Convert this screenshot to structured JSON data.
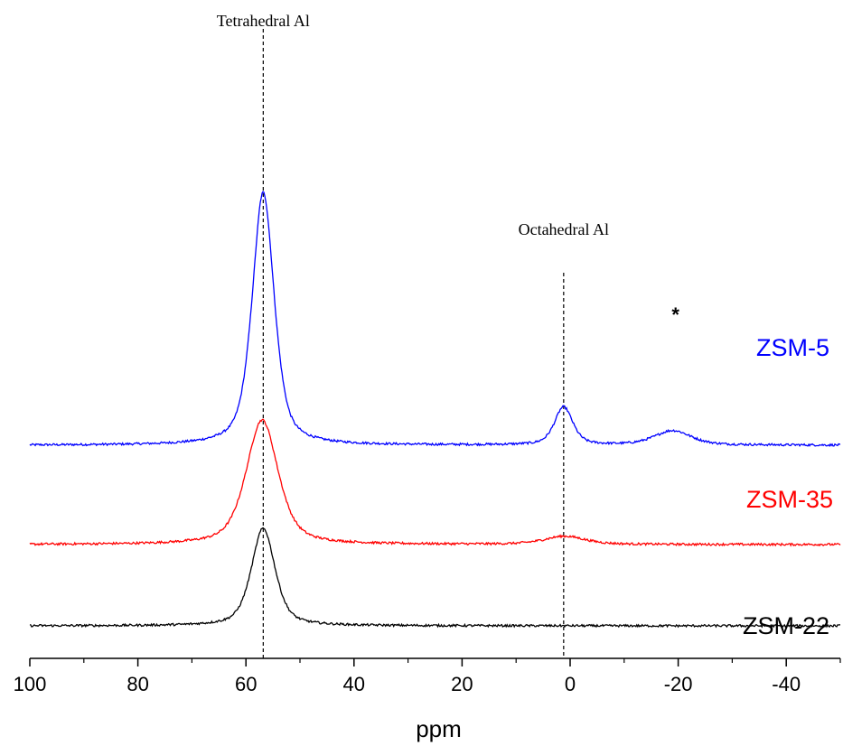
{
  "chart_data": {
    "type": "line",
    "xlabel": "ppm",
    "ylabel": "",
    "xlim": [
      100,
      -50
    ],
    "x_reversed": true,
    "y_axis_visible": false,
    "grid": false,
    "x_ticks": [
      "100",
      "80",
      "60",
      "40",
      "20",
      "0",
      "-20",
      "-40"
    ],
    "x_tick_values": [
      100,
      80,
      60,
      40,
      20,
      0,
      -20,
      -40
    ],
    "reference_lines": [
      {
        "x": 56.8,
        "label": "Tetrahedral Al",
        "style": "dashed"
      },
      {
        "x": 1.2,
        "label": "Octahedral Al",
        "style": "dashed"
      }
    ],
    "annotations": [
      {
        "text": "*",
        "x": -19
      }
    ],
    "series": [
      {
        "name": "ZSM-5",
        "color": "#0000ff",
        "offset": 2.0,
        "peaks": [
          {
            "center": 56.8,
            "height": 2.8,
            "width": 2.4
          },
          {
            "center": 1.2,
            "height": 0.42,
            "width": 2.0
          },
          {
            "center": -19,
            "height": 0.16,
            "width": 4.0
          }
        ],
        "values_x": [
          100,
          70,
          65,
          62,
          60,
          58,
          56.8,
          55,
          53,
          50,
          45,
          30,
          10,
          4,
          2,
          1.2,
          0,
          -3,
          -8,
          -15,
          -19,
          -23,
          -30,
          -50
        ],
        "values_y": [
          2.0,
          2.01,
          2.06,
          2.3,
          3.3,
          4.4,
          4.8,
          4.1,
          2.9,
          2.2,
          2.05,
          2.01,
          2.01,
          2.08,
          2.3,
          2.42,
          2.3,
          2.05,
          2.01,
          2.06,
          2.16,
          2.06,
          2.01,
          2.0
        ]
      },
      {
        "name": "ZSM-35",
        "color": "#ff0000",
        "offset": 0.9,
        "peaks": [
          {
            "center": 57,
            "height": 1.38,
            "width": 3.5
          },
          {
            "center": 1.0,
            "height": 0.09,
            "width": 4.5
          }
        ],
        "values_x": [
          100,
          70,
          65,
          62,
          60,
          58,
          57,
          55,
          53,
          50,
          45,
          40,
          30,
          10,
          5,
          1,
          -5,
          -20,
          -50
        ],
        "values_y": [
          0.9,
          0.91,
          0.97,
          1.2,
          1.6,
          2.15,
          2.28,
          2.1,
          1.8,
          1.4,
          1.1,
          0.98,
          0.93,
          0.91,
          0.95,
          0.99,
          0.94,
          0.91,
          0.9
        ]
      },
      {
        "name": "ZSM-22",
        "color": "#000000",
        "offset": 0.0,
        "peaks": [
          {
            "center": 56.8,
            "height": 1.08,
            "width": 2.6
          }
        ],
        "values_x": [
          100,
          70,
          65,
          62,
          60,
          58,
          56.8,
          55,
          53,
          50,
          45,
          30,
          0,
          -50
        ],
        "values_y": [
          0.0,
          0.01,
          0.04,
          0.2,
          0.55,
          0.95,
          1.08,
          0.85,
          0.4,
          0.1,
          0.03,
          0.01,
          0.005,
          0.0
        ]
      }
    ]
  }
}
